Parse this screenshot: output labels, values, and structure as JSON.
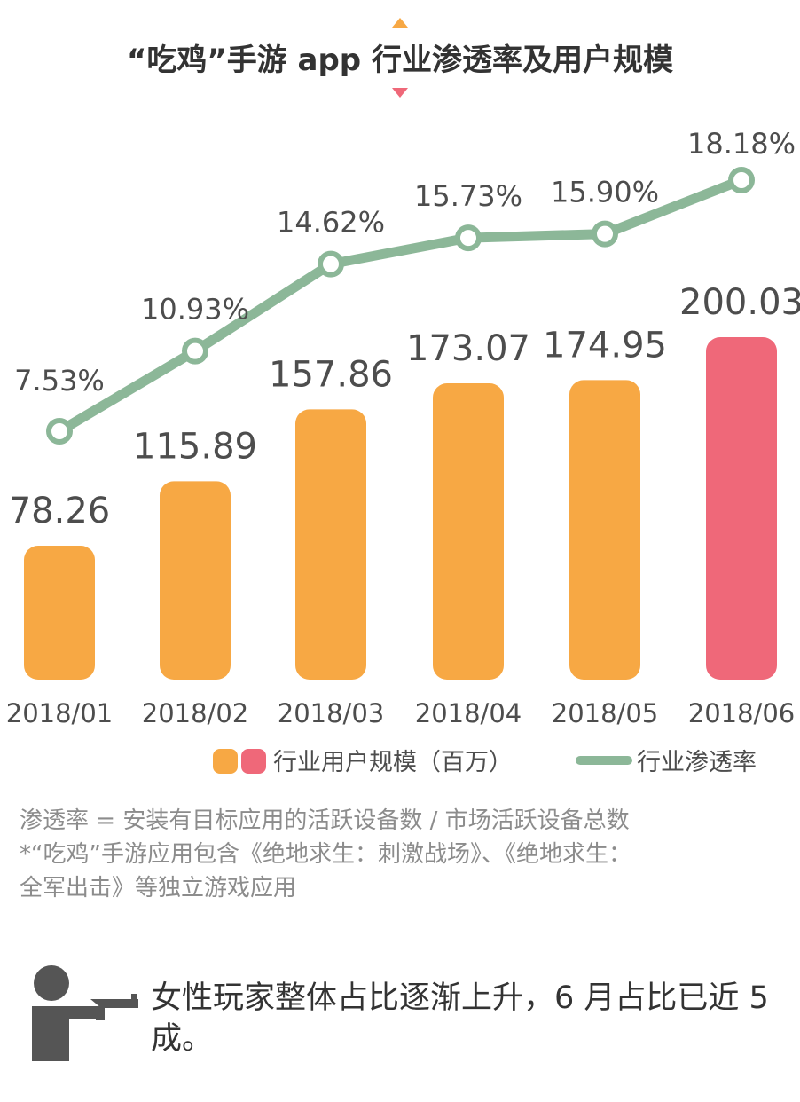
{
  "chart_data": {
    "type": "bar",
    "title": "“吃鸡”手游 app 行业渗透率及用户规模",
    "categories": [
      "2018/01",
      "2018/02",
      "2018/03",
      "2018/04",
      "2018/05",
      "2018/06"
    ],
    "series": [
      {
        "name": "行业用户规模（百万）",
        "type": "bar",
        "values": [
          78.26,
          115.89,
          157.86,
          173.07,
          174.95,
          200.03
        ],
        "labels": [
          "78.26",
          "115.89",
          "157.86",
          "173.07",
          "174.95",
          "200.03"
        ],
        "colors": [
          "#f7a844",
          "#f7a844",
          "#f7a844",
          "#f7a844",
          "#f7a844",
          "#ef6879"
        ]
      },
      {
        "name": "行业渗透率",
        "type": "line",
        "values": [
          7.53,
          10.93,
          14.62,
          15.73,
          15.9,
          18.18
        ],
        "labels": [
          "7.53%",
          "10.93%",
          "14.62%",
          "15.73%",
          "15.90%",
          "18.18%"
        ],
        "color": "#8cb798"
      }
    ],
    "grid": false,
    "legend": "bottom"
  },
  "legend": {
    "bar_label": "行业用户规模（百万）",
    "line_label": "行业渗透率"
  },
  "notes": [
    "渗透率 = 安装有目标应用的活跃设备数 / 市场活跃设备总数",
    "*“吃鸡”手游应用包含《绝地求生：刺激战场》、《绝地求生：",
    "全军出击》等独立游戏应用"
  ],
  "callout": {
    "text": "女性玩家整体占比逐渐上升，6 月占比已近 5 成。",
    "icon": "shooter-icon"
  },
  "colors": {
    "bar": "#f7a844",
    "bar_highlight": "#ef6879",
    "line": "#8cb798",
    "icon": "#555555"
  }
}
